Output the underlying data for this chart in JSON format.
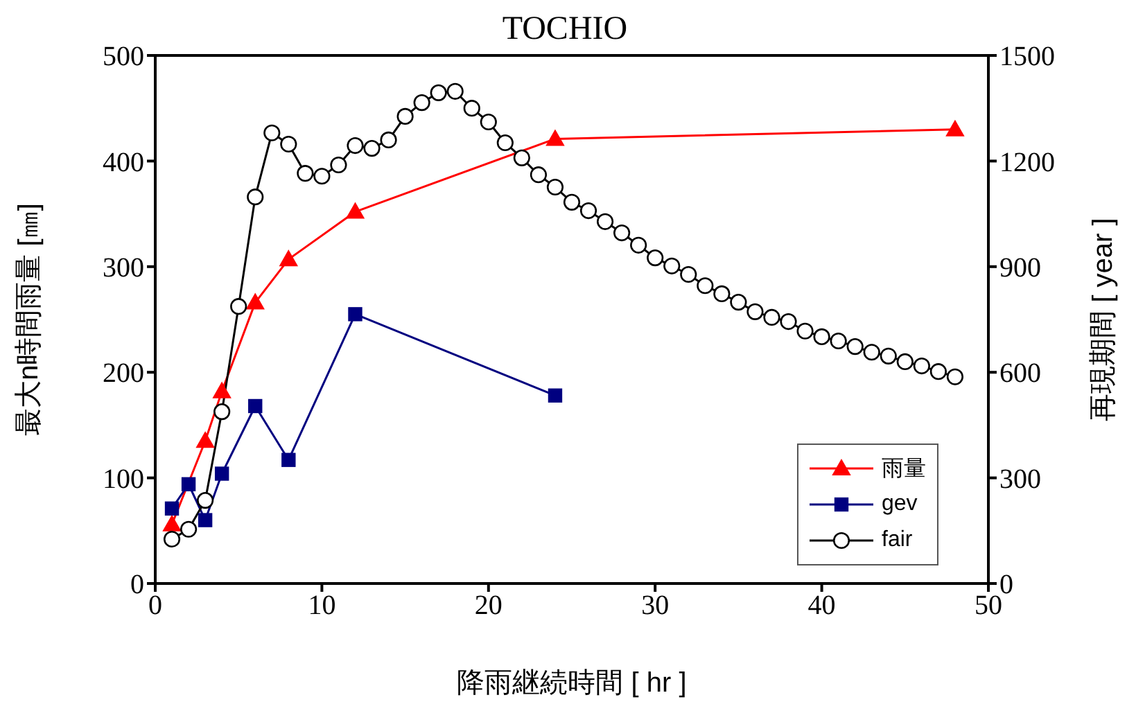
{
  "chart_data": {
    "type": "line",
    "title": "TOCHIO",
    "xlabel": "降雨継続時間 [ hr ]",
    "ylabel": "最大n時間雨量 [㎜]",
    "y2label": "再現期間 [ year ]",
    "xlim": [
      0,
      50
    ],
    "xticks": [
      0,
      10,
      20,
      30,
      40,
      50
    ],
    "ylim": [
      0,
      500
    ],
    "yticks": [
      0,
      100,
      200,
      300,
      400,
      500
    ],
    "y2lim": [
      0,
      1500
    ],
    "y2ticks": [
      0,
      300,
      600,
      900,
      1200,
      1500
    ],
    "grid": false,
    "legend": "bottom right",
    "line_style": "solid",
    "series": [
      {
        "name": "雨量",
        "color": "#ff0000",
        "marker": "triangle",
        "x": [
          1,
          2,
          3,
          4,
          6,
          8,
          12,
          24,
          48
        ],
        "values": [
          56,
          null,
          135,
          182,
          266,
          307,
          352,
          421,
          430
        ]
      },
      {
        "name": "gev",
        "color": "#000080",
        "marker": "square",
        "x": [
          1,
          2,
          3,
          4,
          6,
          8,
          12,
          24
        ],
        "values": [
          71,
          94,
          60,
          104,
          168,
          117,
          255,
          178
        ]
      },
      {
        "name": "fair",
        "color": "#000000",
        "marker": "circle",
        "axis": "y2",
        "x": [
          1,
          2,
          3,
          4,
          5,
          6,
          7,
          8,
          9,
          10,
          11,
          12,
          13,
          14,
          15,
          16,
          17,
          18,
          19,
          20,
          21,
          22,
          23,
          24,
          25,
          26,
          27,
          28,
          29,
          30,
          31,
          32,
          33,
          34,
          35,
          36,
          37,
          38,
          39,
          40,
          41,
          42,
          43,
          44,
          45,
          46,
          47,
          48
        ],
        "values": [
          126,
          154,
          236,
          488,
          787,
          1098,
          1280,
          1248,
          1165,
          1157,
          1189,
          1244,
          1236,
          1260,
          1327,
          1366,
          1394,
          1398,
          1350,
          1311,
          1252,
          1209,
          1161,
          1126,
          1083,
          1059,
          1028,
          996,
          961,
          925,
          902,
          878,
          846,
          823,
          799,
          772,
          756,
          744,
          717,
          701,
          689,
          673,
          657,
          646,
          630,
          618,
          602,
          587
        ]
      }
    ]
  }
}
